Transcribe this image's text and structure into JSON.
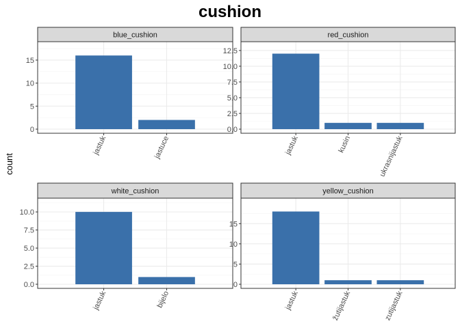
{
  "title": "cushion",
  "ylabel": "count",
  "colors": {
    "bar": "#3a70aa",
    "strip": "#d9d9d9",
    "grid_major": "#ebebeb",
    "grid_minor": "#f5f5f5",
    "border": "#333333"
  },
  "chart_data": [
    {
      "type": "bar",
      "facet": "blue_cushion",
      "categories": [
        "jastuk",
        "jastuce"
      ],
      "values": [
        16,
        2
      ],
      "yticks": [
        "0",
        "5",
        "10",
        "15"
      ],
      "ylim": [
        0,
        19
      ]
    },
    {
      "type": "bar",
      "facet": "red_cushion",
      "categories": [
        "jastuk",
        "kusin",
        "ukrasnijastuk"
      ],
      "values": [
        12,
        1,
        1
      ],
      "yticks": [
        "0.0",
        "2.5",
        "5.0",
        "7.5",
        "10.0",
        "12.5"
      ],
      "ylim": [
        0,
        13.9
      ]
    },
    {
      "type": "bar",
      "facet": "white_cushion",
      "categories": [
        "jastuk",
        "bijelo"
      ],
      "values": [
        10,
        1
      ],
      "yticks": [
        "0.0",
        "2.5",
        "5.0",
        "7.5",
        "10.0"
      ],
      "ylim": [
        0,
        11.9
      ]
    },
    {
      "type": "bar",
      "facet": "yellow_cushion",
      "categories": [
        "jastuk",
        "žutijastuk",
        "zutijastuk"
      ],
      "values": [
        18,
        1,
        1
      ],
      "yticks": [
        "0",
        "5",
        "10",
        "15"
      ],
      "ylim": [
        0,
        21.3
      ]
    }
  ]
}
